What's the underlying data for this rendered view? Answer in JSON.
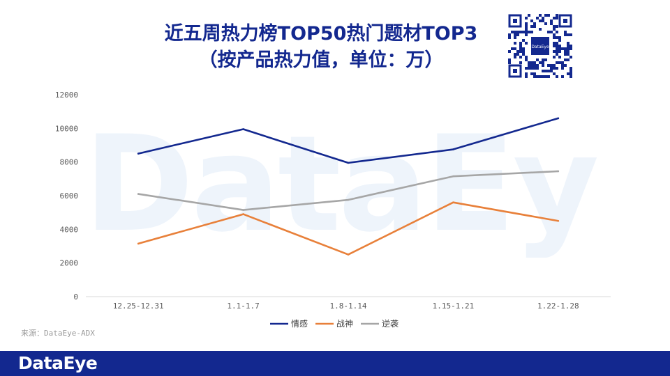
{
  "header": {
    "title_line1": "近五周热力榜TOP50热门题材TOP3",
    "title_line2": "（按产品热力值，单位：万）",
    "qr_logo_text": "DataEye"
  },
  "watermark_text": "DataEye",
  "source": "来源：DataEye-ADX",
  "footer": {
    "logo": "DataEye"
  },
  "chart_data": {
    "type": "line",
    "categories": [
      "12.25-12.31",
      "1.1-1.7",
      "1.8-1.14",
      "1.15-1.21",
      "1.22-1.28"
    ],
    "ylim": [
      0,
      12000
    ],
    "yticks": [
      "0",
      "2000",
      "4000",
      "6000",
      "8000",
      "10000",
      "12000"
    ],
    "grid": false,
    "legend_position": "bottom",
    "series": [
      {
        "name": "情感",
        "color": "#13288f",
        "values": [
          8500,
          9950,
          7950,
          8750,
          10600
        ]
      },
      {
        "name": "战神",
        "color": "#e8803a",
        "values": [
          3150,
          4900,
          2500,
          5600,
          4500
        ]
      },
      {
        "name": "逆袭",
        "color": "#a6a6a6",
        "values": [
          6100,
          5150,
          5750,
          7150,
          7450
        ]
      }
    ]
  },
  "colors": {
    "brand": "#13288f",
    "watermark": "#eef4fb"
  }
}
